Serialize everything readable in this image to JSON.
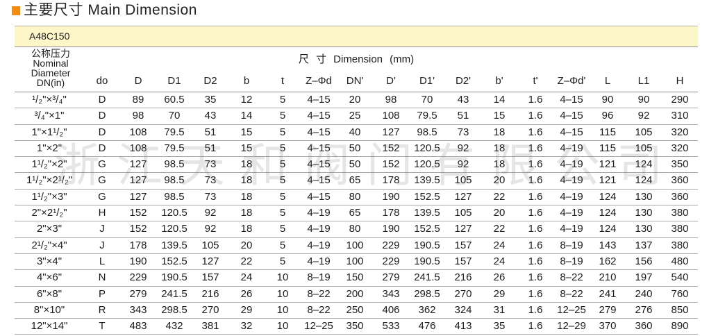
{
  "section_title": "主要尺寸 Main Dimension",
  "icons": {
    "title_marker": "square-bullet-icon"
  },
  "colors": {
    "accent": "#f28c13",
    "model_band": "#fdf6c9"
  },
  "table": {
    "model": "A48C150",
    "nominal_header": [
      "公称压力",
      "Nominal",
      "Diameter",
      "DN(in)"
    ],
    "dimension_header": "尺 寸 Dimension (mm)",
    "columns": [
      "do",
      "D",
      "D1",
      "D2",
      "b",
      "t",
      "Z–Φd",
      "DN'",
      "D'",
      "D1'",
      "D2'",
      "b'",
      "t'",
      "Z–Φd'",
      "L",
      "L1",
      "H"
    ],
    "rows": [
      {
        "dn": "¹/₂\"×³/₄\"",
        "values": [
          "D",
          "89",
          "60.5",
          "35",
          "12",
          "5",
          "4–15",
          "20",
          "98",
          "70",
          "43",
          "14",
          "1.6",
          "4–15",
          "90",
          "90",
          "290"
        ]
      },
      {
        "dn": "³/₄\"×1\"",
        "values": [
          "D",
          "98",
          "70",
          "43",
          "14",
          "5",
          "4–15",
          "25",
          "108",
          "79.5",
          "51",
          "15",
          "1.6",
          "4–15",
          "96",
          "92",
          "310"
        ]
      },
      {
        "dn": "1\"×1¹/₂\"",
        "values": [
          "D",
          "108",
          "79.5",
          "51",
          "15",
          "5",
          "4–15",
          "40",
          "127",
          "98.5",
          "73",
          "18",
          "1.6",
          "4–15",
          "115",
          "105",
          "320"
        ]
      },
      {
        "dn": "1\"×2\"",
        "values": [
          "D",
          "108",
          "79.5",
          "51",
          "15",
          "5",
          "4–15",
          "50",
          "152",
          "120.5",
          "92",
          "18",
          "1.6",
          "4–19",
          "115",
          "105",
          "320"
        ]
      },
      {
        "dn": "1¹/₂\"×2\"",
        "values": [
          "G",
          "127",
          "98.5",
          "73",
          "18",
          "5",
          "4–15",
          "50",
          "152",
          "120.5",
          "92",
          "18",
          "1.6",
          "4–19",
          "121",
          "124",
          "350"
        ]
      },
      {
        "dn": "1¹/₂\"×2¹/₂\"",
        "values": [
          "G",
          "127",
          "98.5",
          "73",
          "18",
          "5",
          "4–15",
          "65",
          "178",
          "139.5",
          "105",
          "20",
          "1.6",
          "4–19",
          "121",
          "124",
          "360"
        ]
      },
      {
        "dn": "1¹/₂\"×3\"",
        "values": [
          "G",
          "127",
          "98.5",
          "73",
          "18",
          "5",
          "4–15",
          "80",
          "190",
          "152.5",
          "127",
          "22",
          "1.6",
          "4–19",
          "124",
          "130",
          "360"
        ]
      },
      {
        "dn": "2\"×2¹/₂\"",
        "values": [
          "H",
          "152",
          "120.5",
          "92",
          "18",
          "5",
          "4–19",
          "65",
          "178",
          "139.5",
          "105",
          "20",
          "1.6",
          "4–19",
          "124",
          "130",
          "380"
        ]
      },
      {
        "dn": "2\"×3\"",
        "values": [
          "J",
          "152",
          "120.5",
          "92",
          "18",
          "5",
          "4–19",
          "80",
          "190",
          "152.5",
          "127",
          "22",
          "1.6",
          "4–19",
          "124",
          "130",
          "380"
        ]
      },
      {
        "dn": "2¹/₂\"×4\"",
        "values": [
          "J",
          "178",
          "139.5",
          "105",
          "20",
          "5",
          "4–19",
          "100",
          "229",
          "190.5",
          "157",
          "24",
          "1.6",
          "8–19",
          "143",
          "137",
          "380"
        ]
      },
      {
        "dn": "3\"×4\"",
        "values": [
          "L",
          "190",
          "152.5",
          "127",
          "22",
          "5",
          "4–19",
          "100",
          "229",
          "190.5",
          "157",
          "24",
          "1.6",
          "8–19",
          "162",
          "156",
          "480"
        ]
      },
      {
        "dn": "4\"×6\"",
        "values": [
          "N",
          "229",
          "190.5",
          "157",
          "24",
          "10",
          "8–19",
          "150",
          "279",
          "241.5",
          "216",
          "26",
          "1.6",
          "8–22",
          "210",
          "197",
          "540"
        ]
      },
      {
        "dn": "6\"×8\"",
        "values": [
          "P",
          "279",
          "241.5",
          "216",
          "26",
          "10",
          "8–22",
          "200",
          "343",
          "298.5",
          "270",
          "29",
          "1.6",
          "8–22",
          "241",
          "240",
          "760"
        ]
      },
      {
        "dn": "8\"×10\"",
        "values": [
          "R",
          "343",
          "298.5",
          "270",
          "29",
          "10",
          "8–22",
          "250",
          "406",
          "362",
          "324",
          "31",
          "1.6",
          "12–25",
          "279",
          "276",
          "850"
        ]
      },
      {
        "dn": "12\"×14\"",
        "values": [
          "T",
          "483",
          "432",
          "381",
          "32",
          "10",
          "12–25",
          "350",
          "533",
          "476",
          "413",
          "35",
          "1.6",
          "12–29",
          "370",
          "360",
          "890"
        ]
      }
    ]
  },
  "watermark": "浙江天和阀门有限公司"
}
